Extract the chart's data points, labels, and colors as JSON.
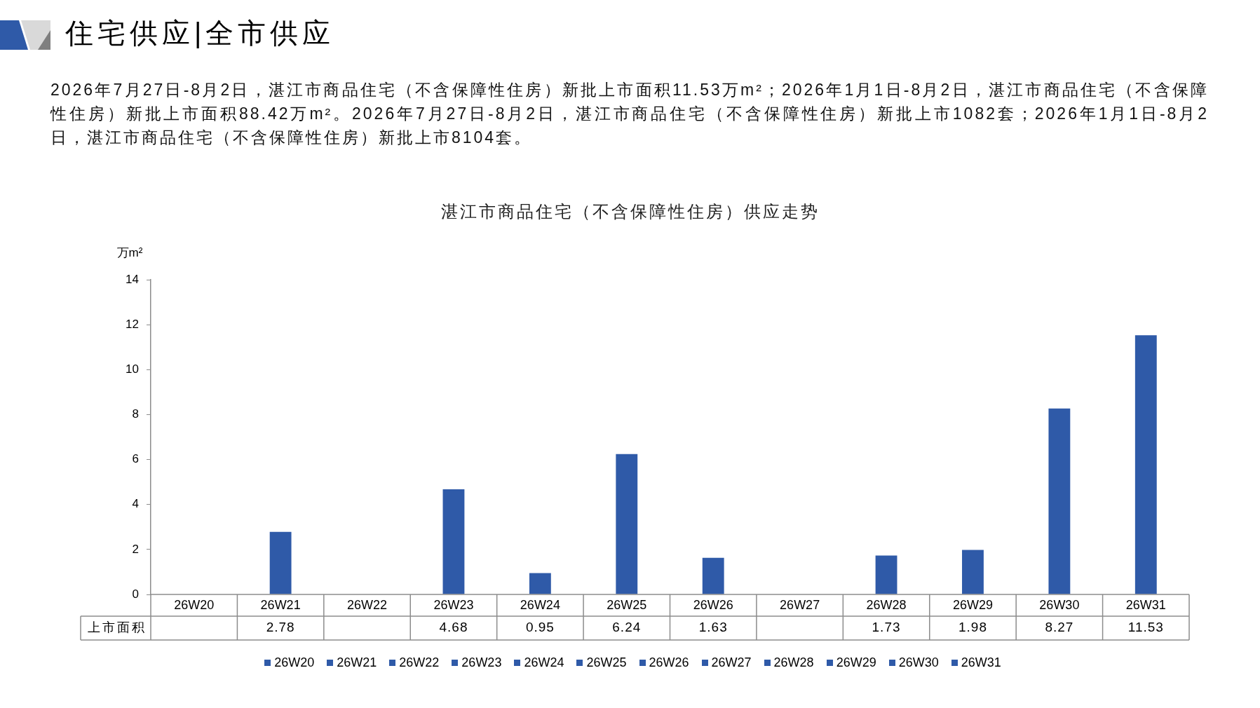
{
  "chart_data": {
    "type": "bar",
    "title": "湛江市商品住宅（不含保障性住房）供应走势",
    "ylabel": "万m²",
    "annotations": [
      "住宅供应|全市供应",
      "2026年7月27日-8月2日，湛江市商品住宅（不含保障性住房）新批上市面积11.53万m²；2026年1月1日-8月2日，湛江市商品住宅（不含保障性住房）新批上市面积88.42万m²。2026年7月27日-8月2日，湛江市商品住宅（不含保障性住房）新批上市1082套；2026年1月1日-8月2日，湛江市商品住宅（不含保障性住房）新批上市8104套。"
    ],
    "categories": [
      "26W20",
      "26W21",
      "26W22",
      "26W23",
      "26W24",
      "26W25",
      "26W26",
      "26W27",
      "26W28",
      "26W29",
      "26W30",
      "26W31"
    ],
    "series": [
      {
        "name": "上市面积",
        "colors": [
          "#2f5aa8",
          "#2f5aa8",
          "#2f5aa8",
          "#2f5aa8",
          "#2f5aa8",
          "#2f5aa8",
          "#2f5aa8",
          "#2f5aa8",
          "#2f5aa8",
          "#2f5aa8",
          "#2f5aa8",
          "#2f5aa8"
        ],
        "values": [
          null,
          2.78,
          null,
          4.68,
          0.95,
          6.24,
          1.63,
          null,
          1.73,
          1.98,
          8.27,
          11.53
        ]
      }
    ],
    "ylim": [
      0,
      14
    ],
    "yticks": [
      0,
      2,
      4,
      6,
      8,
      10,
      12,
      14
    ],
    "grid": false,
    "legend": "bottom",
    "data_labels": true
  }
}
